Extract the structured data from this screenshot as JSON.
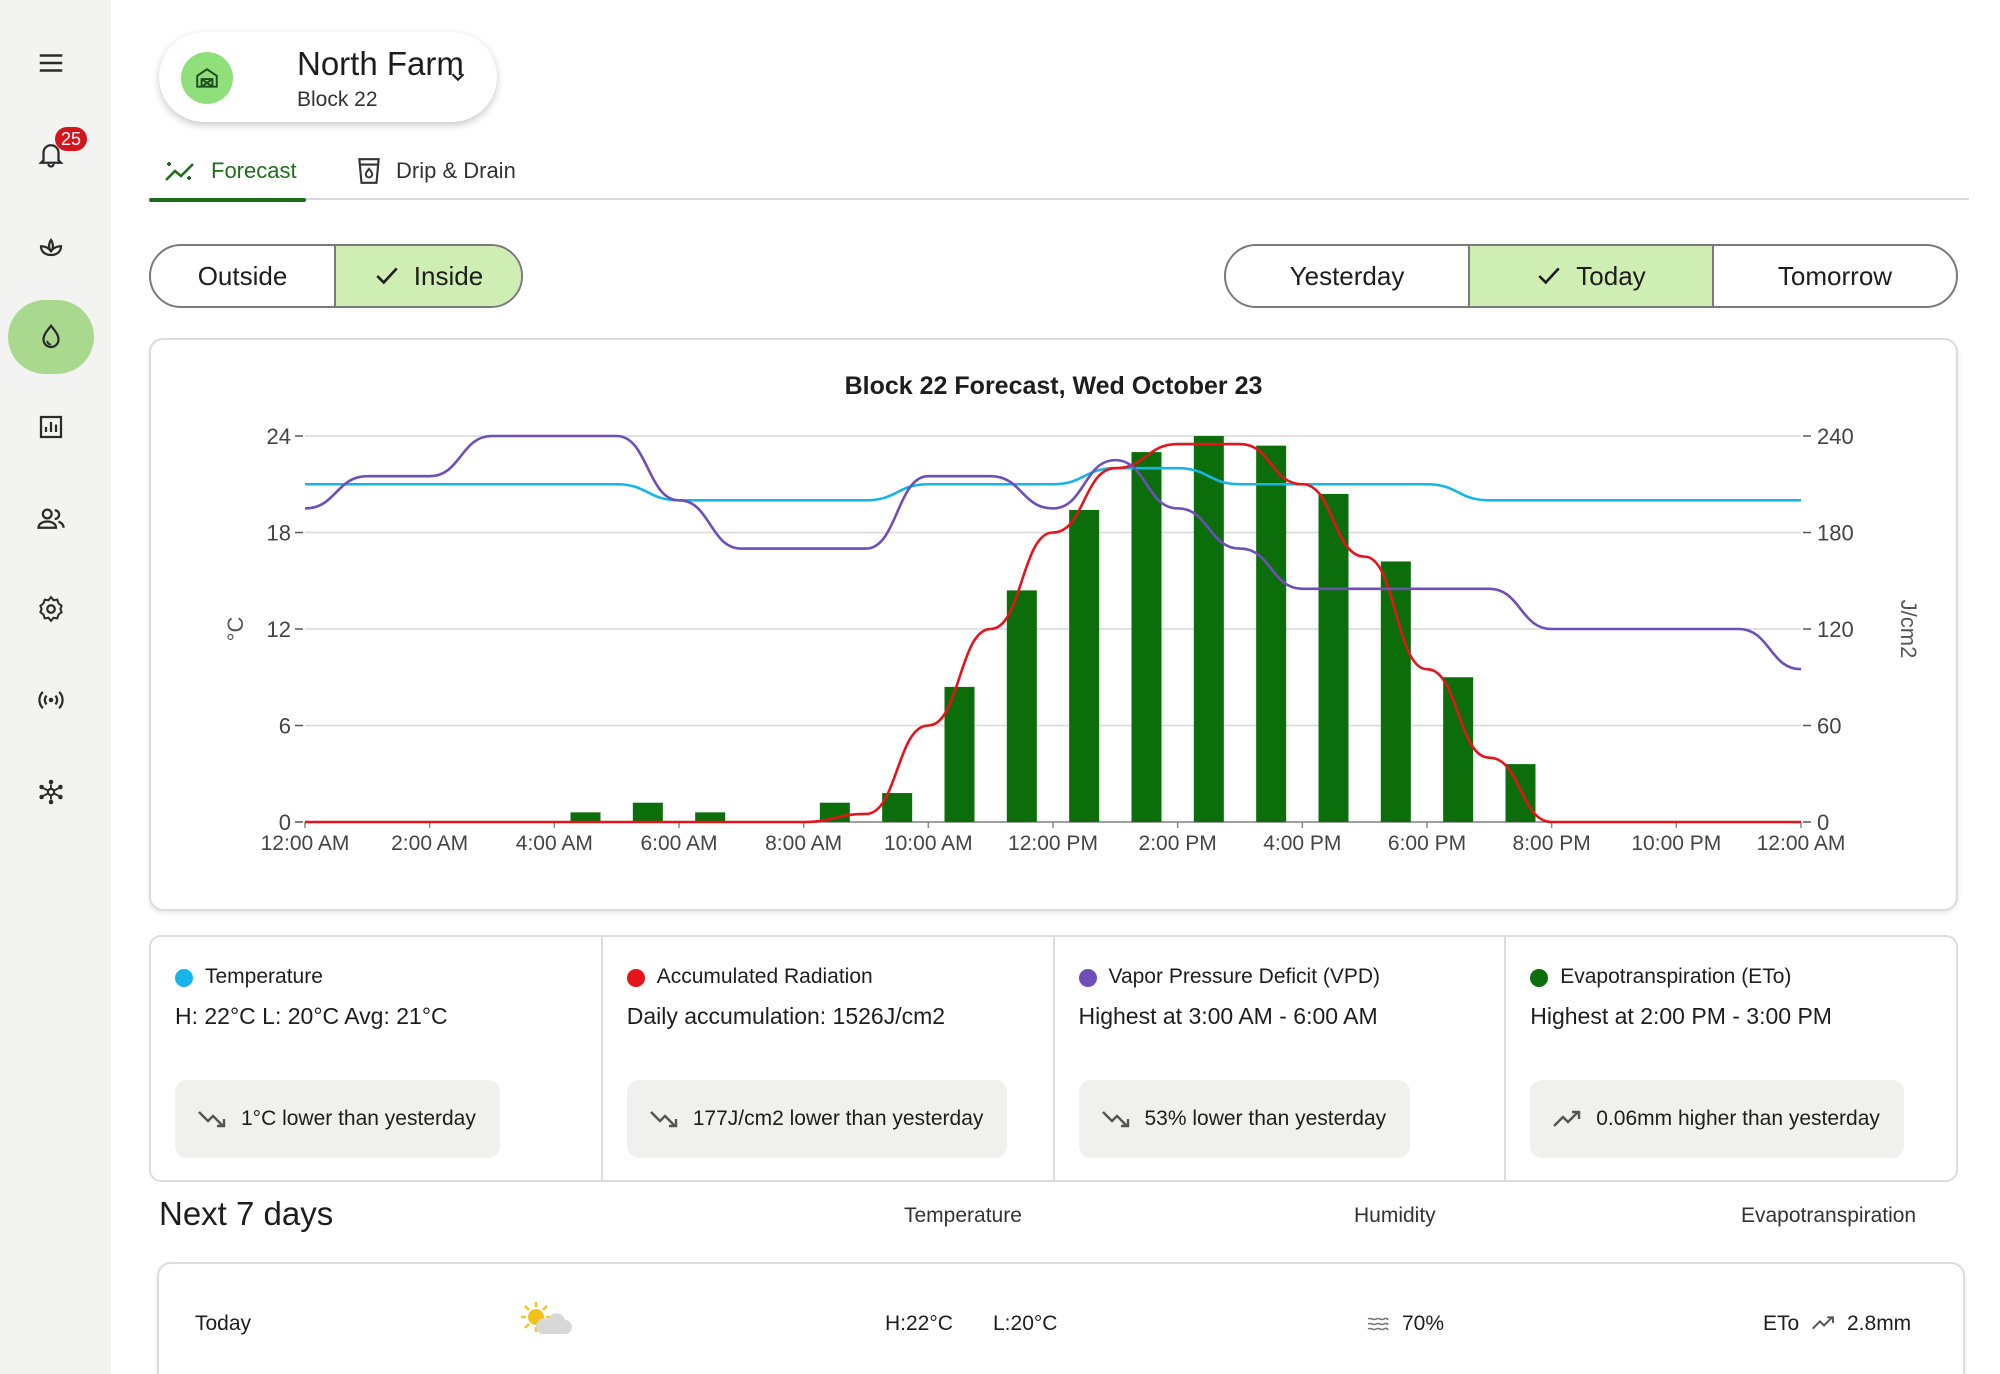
{
  "sidebar": {
    "items": [
      {
        "name": "menu-icon"
      },
      {
        "name": "bell-icon",
        "badge": "25"
      },
      {
        "name": "plant-icon"
      },
      {
        "name": "water-drop-icon",
        "active": true
      },
      {
        "name": "report-chart-icon"
      },
      {
        "name": "people-icon"
      },
      {
        "name": "gear-icon"
      },
      {
        "name": "broadcast-icon"
      },
      {
        "name": "network-icon"
      }
    ]
  },
  "farm": {
    "name": "North Farm",
    "block": "Block 22"
  },
  "tabs": [
    {
      "label": "Forecast",
      "active": true
    },
    {
      "label": "Drip & Drain",
      "active": false
    }
  ],
  "location_toggle": {
    "options": [
      "Outside",
      "Inside"
    ],
    "selected": "Inside"
  },
  "day_toggle": {
    "options": [
      "Yesterday",
      "Today",
      "Tomorrow"
    ],
    "selected": "Today"
  },
  "chart_data": {
    "type": "bar+line",
    "title": "Block 22 Forecast, Wed October 23",
    "x_tick_labels": [
      "12:00 AM",
      "2:00 AM",
      "4:00 AM",
      "6:00 AM",
      "8:00 AM",
      "10:00 AM",
      "12:00 PM",
      "2:00 PM",
      "4:00 PM",
      "6:00 PM",
      "8:00 PM",
      "10:00 PM",
      "12:00 AM"
    ],
    "x_range_hours": [
      0,
      24
    ],
    "left_axis": {
      "label": "°C",
      "ticks": [
        0,
        6,
        12,
        18,
        24
      ],
      "range": [
        0,
        24
      ]
    },
    "right_axis": {
      "label": "J/cm2",
      "ticks": [
        0,
        60,
        120,
        180,
        240
      ],
      "range": [
        0,
        240
      ]
    },
    "grid": true,
    "series": [
      {
        "name": "Evapotranspiration (ETo)",
        "kind": "bar",
        "axis": "left",
        "color": "#0b6e0b",
        "hours": [
          0,
          1,
          2,
          3,
          4,
          5,
          6,
          7,
          8,
          9,
          10,
          11,
          12,
          13,
          14,
          15,
          16,
          17,
          18,
          19,
          20,
          21,
          22,
          23
        ],
        "values": [
          0,
          0,
          0,
          0,
          0.6,
          1.2,
          0.6,
          0,
          1.2,
          1.8,
          8.4,
          14.4,
          19.4,
          23,
          24,
          23.4,
          20.4,
          16.2,
          9,
          3.6,
          0,
          0,
          0,
          0
        ]
      },
      {
        "name": "Temperature",
        "kind": "line",
        "axis": "left",
        "color": "#17b4ea",
        "hours": [
          0,
          1,
          2,
          3,
          4,
          5,
          6,
          7,
          8,
          9,
          10,
          11,
          12,
          13,
          14,
          15,
          16,
          17,
          18,
          19,
          20,
          21,
          22,
          23,
          24
        ],
        "values": [
          21,
          21,
          21,
          21,
          21,
          21,
          20,
          20,
          20,
          20,
          21,
          21,
          21,
          22,
          22,
          21,
          21,
          21,
          21,
          20,
          20,
          20,
          20,
          20,
          20
        ]
      },
      {
        "name": "Accumulated Radiation",
        "kind": "line",
        "axis": "right",
        "color": "#e5131b",
        "hours": [
          0,
          1,
          2,
          3,
          4,
          5,
          6,
          7,
          8,
          9,
          10,
          11,
          12,
          13,
          14,
          15,
          16,
          17,
          18,
          19,
          20,
          21,
          22,
          23,
          24
        ],
        "values": [
          0,
          0,
          0,
          0,
          0,
          0,
          0,
          0,
          0,
          5,
          60,
          120,
          180,
          220,
          235,
          235,
          210,
          165,
          95,
          40,
          0,
          0,
          0,
          0,
          0
        ]
      },
      {
        "name": "Vapor Pressure Deficit (VPD)",
        "kind": "line",
        "axis": "left",
        "color": "#6e4eb8",
        "hours": [
          0,
          1,
          2,
          3,
          4,
          5,
          6,
          7,
          8,
          9,
          10,
          11,
          12,
          13,
          14,
          15,
          16,
          17,
          18,
          19,
          20,
          21,
          22,
          23,
          24
        ],
        "values": [
          19.5,
          21.5,
          21.5,
          24,
          24,
          24,
          20,
          17,
          17,
          17,
          21.5,
          21.5,
          19.5,
          22.5,
          19.5,
          17,
          14.5,
          14.5,
          14.5,
          14.5,
          12,
          12,
          12,
          12,
          9.5
        ]
      }
    ]
  },
  "stats": [
    {
      "label": "Temperature",
      "color": "#17b4ea",
      "value": "H: 22°C L: 20°C Avg: 21°C",
      "trend": "down",
      "change": "1°C lower than yesterday"
    },
    {
      "label": "Accumulated Radiation",
      "color": "#e5131b",
      "value": "Daily accumulation: 1526J/cm2",
      "trend": "down",
      "change": "177J/cm2 lower than yesterday"
    },
    {
      "label": "Vapor Pressure Deficit (VPD)",
      "color": "#6e4eb8",
      "value": "Highest at 3:00 AM - 6:00 AM",
      "trend": "down",
      "change": "53% lower than yesterday"
    },
    {
      "label": "Evapotranspiration (ETo)",
      "color": "#0b6e0b",
      "value": "Highest at 2:00 PM - 3:00 PM",
      "trend": "up",
      "change": "0.06mm higher than yesterday"
    }
  ],
  "next7": {
    "title": "Next 7 days",
    "columns": [
      "Temperature",
      "Humidity",
      "Evapotranspiration"
    ],
    "rows": [
      {
        "day": "Today",
        "icon": "partly-sunny-icon",
        "high": "H:22°C",
        "low": "L:20°C",
        "humidity": "70%",
        "eto_label": "ETo",
        "eto": "2.8mm"
      }
    ]
  }
}
